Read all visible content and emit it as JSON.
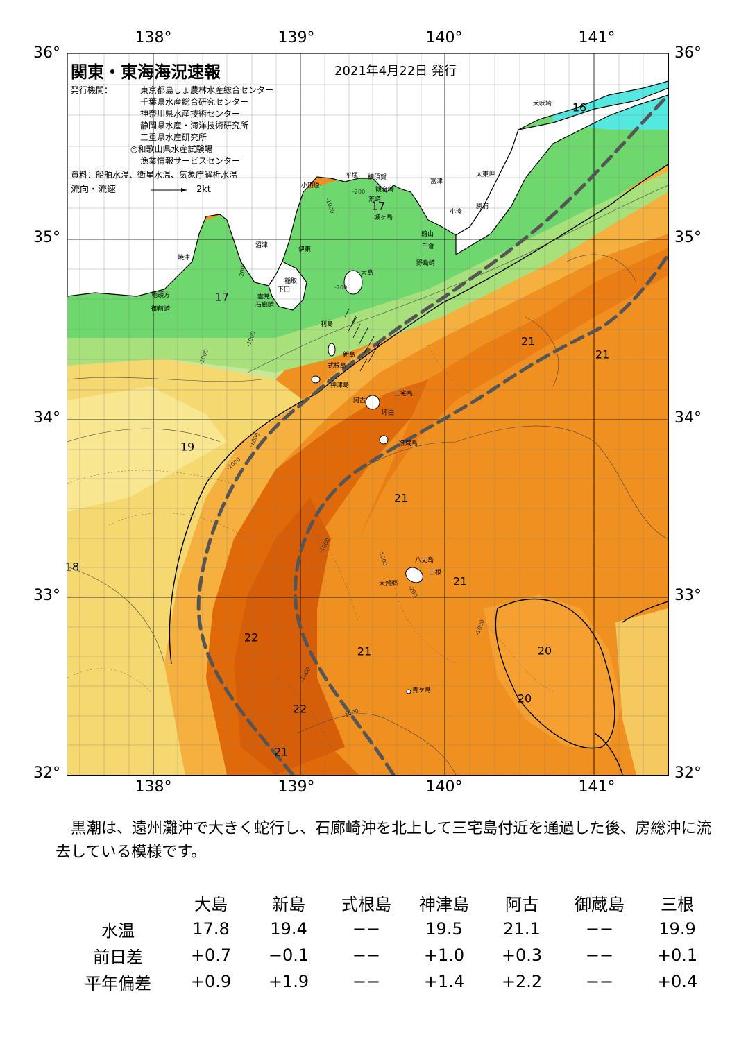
{
  "header": {
    "title": "関東・東海海況速報",
    "date": "2021年4月22日 発行"
  },
  "publisher": {
    "label": "発行機関：",
    "orgs": [
      "東京都島しょ農林水産総合センター",
      "千葉県水産総合研究センター",
      "神奈川県水産技術センター",
      "静岡県水産・海洋技術研究所",
      "三重県水産研究所",
      "◎和歌山県水産試験場",
      "漁業情報サービスセンター"
    ],
    "source": "資料：船舶水温、衛星水温、気象庁解析水温",
    "flow_label": "流向・流速",
    "flow_scale": "2kt"
  },
  "axes": {
    "lon_labels": [
      "138°",
      "139°",
      "140°",
      "141°"
    ],
    "lat_labels": [
      "36°",
      "35°",
      "34°",
      "33°",
      "32°"
    ]
  },
  "places": [
    {
      "name": "犬吠埼"
    },
    {
      "name": "太東岬"
    },
    {
      "name": "勝浦"
    },
    {
      "name": "小湊"
    },
    {
      "name": "富津"
    },
    {
      "name": "横須賀"
    },
    {
      "name": "平塚"
    },
    {
      "name": "小田原"
    },
    {
      "name": "観音崎"
    },
    {
      "name": "荒崎"
    },
    {
      "name": "城ヶ島"
    },
    {
      "name": "館山"
    },
    {
      "name": "千倉"
    },
    {
      "name": "野島崎"
    },
    {
      "name": "大島"
    },
    {
      "name": "沼津"
    },
    {
      "name": "伊東"
    },
    {
      "name": "焼津"
    },
    {
      "name": "稲取"
    },
    {
      "name": "下田"
    },
    {
      "name": "雲見"
    },
    {
      "name": "石廊崎"
    },
    {
      "name": "地頭方"
    },
    {
      "name": "御前崎"
    },
    {
      "name": "利島"
    },
    {
      "name": "新島"
    },
    {
      "name": "式根島"
    },
    {
      "name": "神津島"
    },
    {
      "name": "三宅島"
    },
    {
      "name": "阿古"
    },
    {
      "name": "坪田"
    },
    {
      "name": "御蔵島"
    },
    {
      "name": "八丈島"
    },
    {
      "name": "三根"
    },
    {
      "name": "大賀郷"
    },
    {
      "name": "青ケ島"
    }
  ],
  "temp_labels": [
    "16",
    "17",
    "17",
    "19",
    "18",
    "21",
    "21",
    "21",
    "21",
    "21",
    "21",
    "22",
    "22",
    "21",
    "20",
    "20"
  ],
  "contour_labels": [
    "-200",
    "-1000",
    "-200",
    "-200",
    "-1000",
    "-1000",
    "-1000",
    "-1000",
    "-1000",
    "-1000",
    "-1000",
    "-1000",
    "-200",
    "-1000"
  ],
  "summary": "黒潮は、遠州灘沖で大きく蛇行し、石廊崎沖を北上して三宅島付近を通過した後、房総沖に流去している模様です。",
  "observations": {
    "columns": [
      "大島",
      "新島",
      "式根島",
      "神津島",
      "阿古",
      "御蔵島",
      "三根"
    ],
    "rows": [
      {
        "label": "水温",
        "values": [
          "17.8",
          "19.4",
          "−−",
          "19.5",
          "21.1",
          "−−",
          "19.9"
        ]
      },
      {
        "label": "前日差",
        "values": [
          "+0.7",
          "−0.1",
          "−−",
          "+1.0",
          "+0.3",
          "−−",
          "+0.1"
        ]
      },
      {
        "label": "平年偏差",
        "values": [
          "+0.9",
          "+1.9",
          "−−",
          "+1.4",
          "+2.2",
          "−−",
          "+0.4"
        ]
      }
    ]
  },
  "colors": {
    "land": "#ffffff",
    "cold_cyan": "#55e8e0",
    "green": "#6ed86e",
    "light_green": "#b8e890",
    "yellow": "#f5d870",
    "light_orange": "#f5b040",
    "orange": "#f09020",
    "dark_orange": "#e06a0a",
    "kuroshio_line": "#555555"
  }
}
